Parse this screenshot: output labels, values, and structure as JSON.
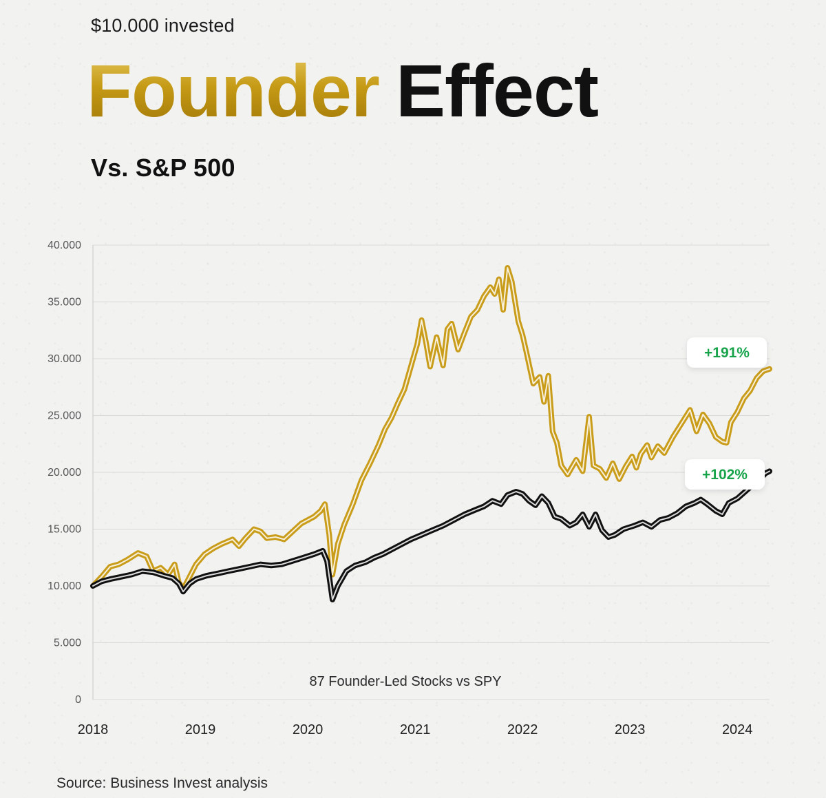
{
  "header": {
    "subtitle": "$10.000 invested",
    "title_part1": "Founder",
    "title_part2": "Effect",
    "vs_label": "Vs. S&P 500"
  },
  "source": "Source: Business Invest analysis",
  "colors": {
    "gold": "#C99C1A",
    "black": "#111111",
    "green": "#16A34A",
    "grid": "#D9D9D9"
  },
  "chart_data": {
    "type": "line",
    "title": "",
    "annotation": "87 Founder-Led Stocks vs SPY",
    "xlabel": "",
    "ylabel": "",
    "xlim": [
      2018,
      2024.3
    ],
    "ylim": [
      0,
      40000
    ],
    "yticks": [
      0,
      5000,
      10000,
      15000,
      20000,
      25000,
      30000,
      35000,
      40000
    ],
    "ytick_labels": [
      "0",
      "5.000",
      "10.000",
      "15.000",
      "20.000",
      "25.000",
      "30.000",
      "35.000",
      "40.000"
    ],
    "xticks": [
      2018,
      2019,
      2020,
      2021,
      2022,
      2023,
      2024
    ],
    "xtick_labels": [
      "2018",
      "2019",
      "2020",
      "2021",
      "2022",
      "2023",
      "2024"
    ],
    "grid": true,
    "series": [
      {
        "name": "87 Founder-Led Stocks",
        "color": "#C99C1A",
        "label": "+191%",
        "points": [
          [
            2018.0,
            10000
          ],
          [
            2018.08,
            10800
          ],
          [
            2018.16,
            11700
          ],
          [
            2018.24,
            11900
          ],
          [
            2018.32,
            12300
          ],
          [
            2018.42,
            12900
          ],
          [
            2018.5,
            12600
          ],
          [
            2018.56,
            11300
          ],
          [
            2018.63,
            11600
          ],
          [
            2018.7,
            11000
          ],
          [
            2018.76,
            11900
          ],
          [
            2018.8,
            10300
          ],
          [
            2018.84,
            9700
          ],
          [
            2018.9,
            10800
          ],
          [
            2018.96,
            11900
          ],
          [
            2019.04,
            12800
          ],
          [
            2019.12,
            13300
          ],
          [
            2019.2,
            13700
          ],
          [
            2019.3,
            14100
          ],
          [
            2019.36,
            13500
          ],
          [
            2019.42,
            14200
          ],
          [
            2019.5,
            15000
          ],
          [
            2019.56,
            14800
          ],
          [
            2019.62,
            14200
          ],
          [
            2019.7,
            14300
          ],
          [
            2019.78,
            14100
          ],
          [
            2019.86,
            14800
          ],
          [
            2019.94,
            15500
          ],
          [
            2020.0,
            15800
          ],
          [
            2020.06,
            16100
          ],
          [
            2020.12,
            16600
          ],
          [
            2020.16,
            17200
          ],
          [
            2020.2,
            14500
          ],
          [
            2020.23,
            11000
          ],
          [
            2020.28,
            13700
          ],
          [
            2020.34,
            15400
          ],
          [
            2020.42,
            17200
          ],
          [
            2020.5,
            19300
          ],
          [
            2020.58,
            20800
          ],
          [
            2020.66,
            22400
          ],
          [
            2020.72,
            23800
          ],
          [
            2020.78,
            24800
          ],
          [
            2020.84,
            26100
          ],
          [
            2020.9,
            27300
          ],
          [
            2020.96,
            29300
          ],
          [
            2021.02,
            31300
          ],
          [
            2021.06,
            33400
          ],
          [
            2021.1,
            31500
          ],
          [
            2021.14,
            29300
          ],
          [
            2021.2,
            31900
          ],
          [
            2021.26,
            29400
          ],
          [
            2021.3,
            32600
          ],
          [
            2021.34,
            33100
          ],
          [
            2021.4,
            30800
          ],
          [
            2021.46,
            32300
          ],
          [
            2021.52,
            33700
          ],
          [
            2021.58,
            34300
          ],
          [
            2021.64,
            35500
          ],
          [
            2021.7,
            36300
          ],
          [
            2021.74,
            35700
          ],
          [
            2021.78,
            37000
          ],
          [
            2021.82,
            34300
          ],
          [
            2021.86,
            38000
          ],
          [
            2021.9,
            36800
          ],
          [
            2021.96,
            33300
          ],
          [
            2022.0,
            32100
          ],
          [
            2022.04,
            30400
          ],
          [
            2022.1,
            27800
          ],
          [
            2022.16,
            28400
          ],
          [
            2022.2,
            26200
          ],
          [
            2022.24,
            28500
          ],
          [
            2022.28,
            23600
          ],
          [
            2022.32,
            22600
          ],
          [
            2022.36,
            20600
          ],
          [
            2022.42,
            19800
          ],
          [
            2022.5,
            21100
          ],
          [
            2022.56,
            20100
          ],
          [
            2022.62,
            24900
          ],
          [
            2022.66,
            20600
          ],
          [
            2022.72,
            20300
          ],
          [
            2022.78,
            19500
          ],
          [
            2022.84,
            20800
          ],
          [
            2022.9,
            19400
          ],
          [
            2022.96,
            20500
          ],
          [
            2023.02,
            21400
          ],
          [
            2023.06,
            20400
          ],
          [
            2023.1,
            21600
          ],
          [
            2023.16,
            22400
          ],
          [
            2023.2,
            21300
          ],
          [
            2023.26,
            22300
          ],
          [
            2023.32,
            21700
          ],
          [
            2023.4,
            23100
          ],
          [
            2023.48,
            24300
          ],
          [
            2023.56,
            25500
          ],
          [
            2023.62,
            23600
          ],
          [
            2023.68,
            25100
          ],
          [
            2023.74,
            24300
          ],
          [
            2023.8,
            23100
          ],
          [
            2023.86,
            22700
          ],
          [
            2023.9,
            22600
          ],
          [
            2023.94,
            24400
          ],
          [
            2024.0,
            25300
          ],
          [
            2024.06,
            26500
          ],
          [
            2024.12,
            27200
          ],
          [
            2024.18,
            28300
          ],
          [
            2024.24,
            28900
          ],
          [
            2024.3,
            29100
          ]
        ]
      },
      {
        "name": "SPY",
        "color": "#111111",
        "label": "+102%",
        "points": [
          [
            2018.0,
            10000
          ],
          [
            2018.08,
            10400
          ],
          [
            2018.16,
            10600
          ],
          [
            2018.26,
            10800
          ],
          [
            2018.36,
            11000
          ],
          [
            2018.46,
            11300
          ],
          [
            2018.56,
            11200
          ],
          [
            2018.66,
            10900
          ],
          [
            2018.74,
            10700
          ],
          [
            2018.8,
            10200
          ],
          [
            2018.84,
            9500
          ],
          [
            2018.9,
            10200
          ],
          [
            2018.96,
            10600
          ],
          [
            2019.06,
            10900
          ],
          [
            2019.16,
            11100
          ],
          [
            2019.26,
            11300
          ],
          [
            2019.36,
            11500
          ],
          [
            2019.46,
            11700
          ],
          [
            2019.56,
            11900
          ],
          [
            2019.66,
            11800
          ],
          [
            2019.76,
            11900
          ],
          [
            2019.86,
            12200
          ],
          [
            2019.96,
            12500
          ],
          [
            2020.06,
            12800
          ],
          [
            2020.14,
            13100
          ],
          [
            2020.18,
            12200
          ],
          [
            2020.23,
            8800
          ],
          [
            2020.28,
            10000
          ],
          [
            2020.36,
            11300
          ],
          [
            2020.44,
            11800
          ],
          [
            2020.54,
            12100
          ],
          [
            2020.62,
            12500
          ],
          [
            2020.7,
            12800
          ],
          [
            2020.78,
            13200
          ],
          [
            2020.86,
            13600
          ],
          [
            2020.96,
            14100
          ],
          [
            2021.06,
            14500
          ],
          [
            2021.16,
            14900
          ],
          [
            2021.26,
            15300
          ],
          [
            2021.36,
            15800
          ],
          [
            2021.46,
            16300
          ],
          [
            2021.56,
            16700
          ],
          [
            2021.64,
            17000
          ],
          [
            2021.72,
            17500
          ],
          [
            2021.8,
            17200
          ],
          [
            2021.86,
            18000
          ],
          [
            2021.94,
            18300
          ],
          [
            2022.0,
            18100
          ],
          [
            2022.06,
            17500
          ],
          [
            2022.12,
            17100
          ],
          [
            2022.18,
            17900
          ],
          [
            2022.24,
            17300
          ],
          [
            2022.3,
            16100
          ],
          [
            2022.36,
            15900
          ],
          [
            2022.44,
            15300
          ],
          [
            2022.5,
            15600
          ],
          [
            2022.56,
            16300
          ],
          [
            2022.62,
            15200
          ],
          [
            2022.68,
            16300
          ],
          [
            2022.74,
            14900
          ],
          [
            2022.8,
            14300
          ],
          [
            2022.86,
            14500
          ],
          [
            2022.94,
            15000
          ],
          [
            2023.04,
            15300
          ],
          [
            2023.12,
            15600
          ],
          [
            2023.2,
            15200
          ],
          [
            2023.28,
            15800
          ],
          [
            2023.36,
            16000
          ],
          [
            2023.44,
            16400
          ],
          [
            2023.52,
            17000
          ],
          [
            2023.6,
            17300
          ],
          [
            2023.66,
            17600
          ],
          [
            2023.72,
            17200
          ],
          [
            2023.8,
            16600
          ],
          [
            2023.86,
            16300
          ],
          [
            2023.92,
            17300
          ],
          [
            2024.0,
            17700
          ],
          [
            2024.06,
            18200
          ],
          [
            2024.12,
            18700
          ],
          [
            2024.2,
            19300
          ],
          [
            2024.26,
            19900
          ],
          [
            2024.3,
            20100
          ]
        ]
      }
    ]
  }
}
